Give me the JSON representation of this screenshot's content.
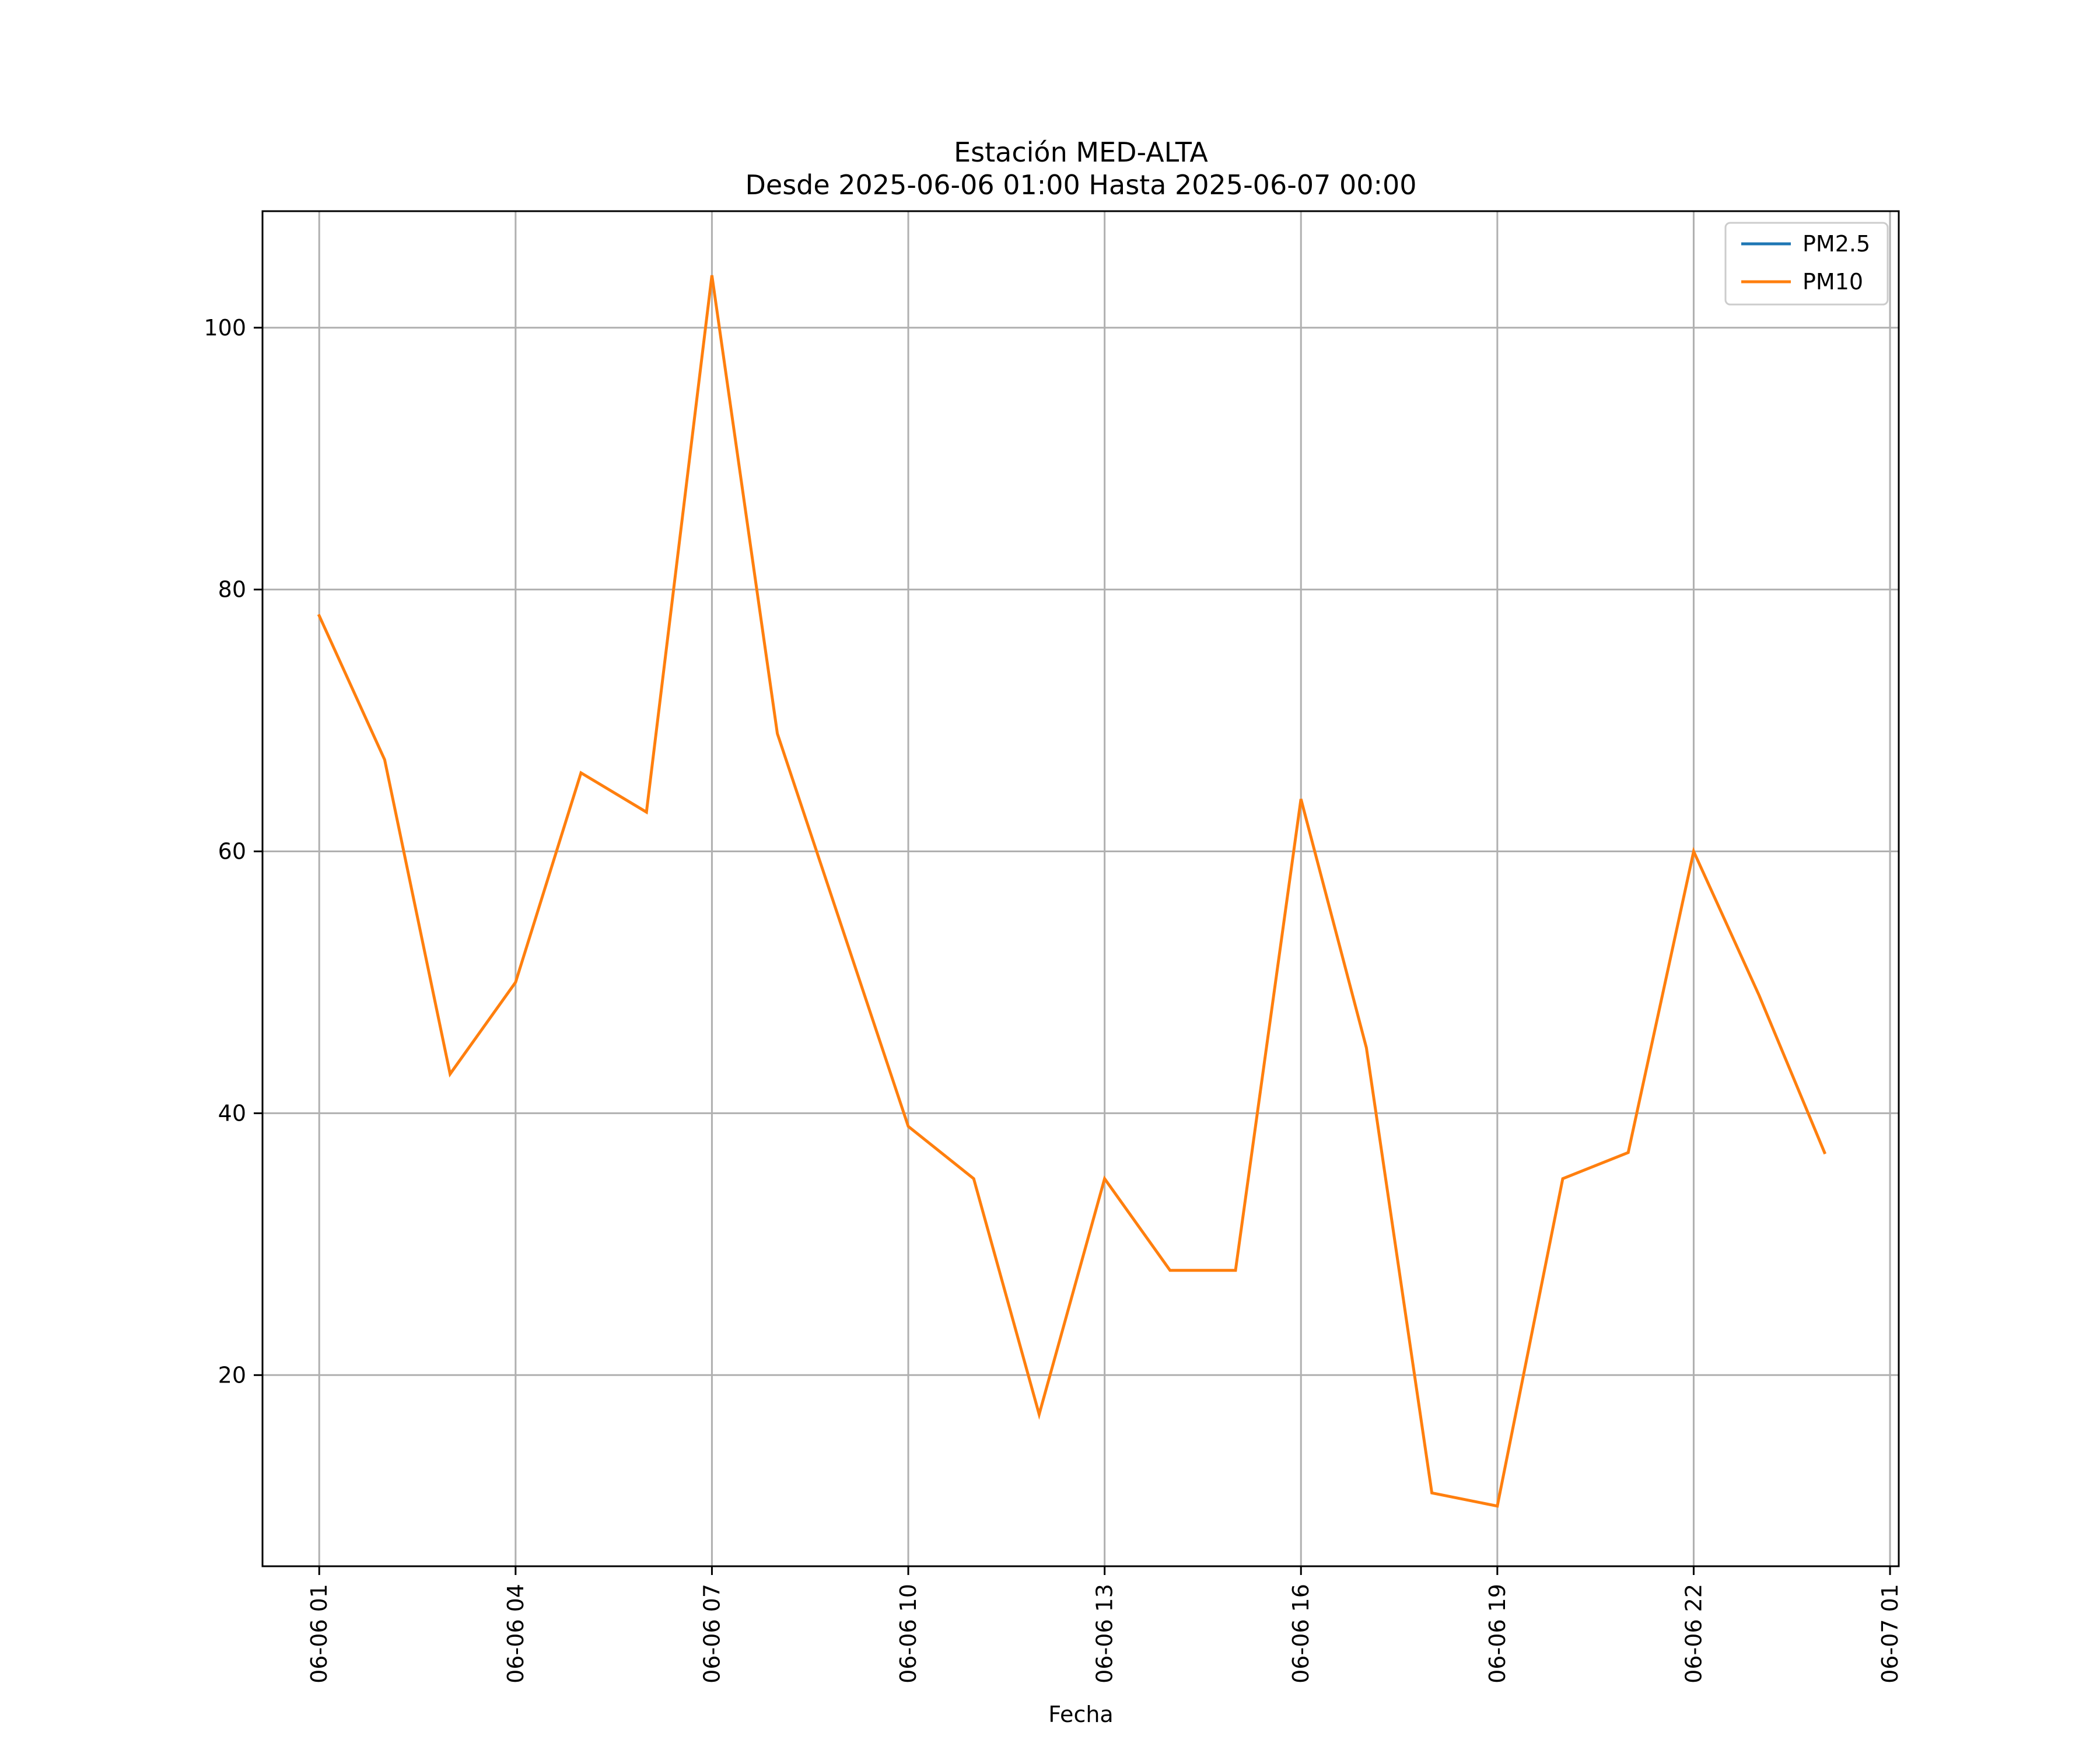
{
  "chart_data": {
    "type": "line",
    "title": "Estación MED-ALTA",
    "subtitle": "Desde 2025-06-06 01:00 Hasta 2025-06-07 00:00",
    "xlabel": "Fecha",
    "ylabel": "",
    "grid": true,
    "legend_position": "top-right",
    "x_ticks": [
      "06-06 01",
      "06-06 04",
      "06-06 07",
      "06-06 10",
      "06-06 13",
      "06-06 16",
      "06-06 19",
      "06-06 22",
      "06-07 01"
    ],
    "x": [
      "2025-06-06 01:00",
      "2025-06-06 02:00",
      "2025-06-06 03:00",
      "2025-06-06 04:00",
      "2025-06-06 05:00",
      "2025-06-06 06:00",
      "2025-06-06 07:00",
      "2025-06-06 08:00",
      "2025-06-06 09:00",
      "2025-06-06 10:00",
      "2025-06-06 11:00",
      "2025-06-06 12:00",
      "2025-06-06 13:00",
      "2025-06-06 14:00",
      "2025-06-06 15:00",
      "2025-06-06 16:00",
      "2025-06-06 17:00",
      "2025-06-06 18:00",
      "2025-06-06 19:00",
      "2025-06-06 20:00",
      "2025-06-06 21:00",
      "2025-06-06 22:00",
      "2025-06-06 23:00",
      "2025-06-07 00:00"
    ],
    "xlim": [
      "2025-06-06 00:08",
      "2025-06-07 01:08"
    ],
    "ylim": [
      5.4,
      108.9
    ],
    "y_ticks": [
      20,
      40,
      60,
      80,
      100
    ],
    "series": [
      {
        "name": "PM2.5",
        "color": "#1f77b4",
        "values": [
          null,
          null,
          null,
          null,
          null,
          null,
          null,
          null,
          null,
          null,
          null,
          null,
          null,
          null,
          null,
          null,
          null,
          null,
          null,
          null,
          null,
          null,
          null,
          null
        ]
      },
      {
        "name": "PM10",
        "color": "#ff7f0e",
        "values": [
          78,
          67,
          43,
          50,
          66,
          63,
          104,
          69,
          54,
          39,
          35,
          17,
          35,
          28,
          28,
          64,
          45,
          11,
          10,
          35,
          37,
          60,
          49,
          37
        ]
      }
    ]
  }
}
